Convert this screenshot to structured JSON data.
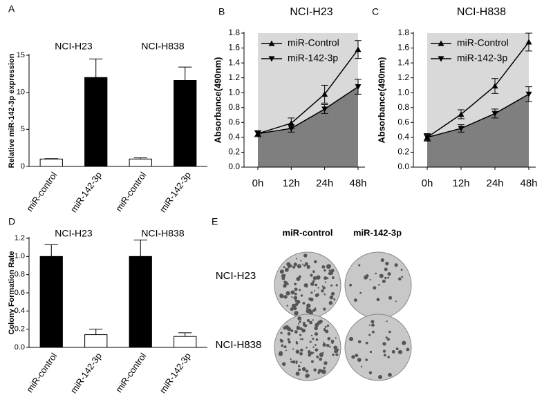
{
  "chart_data": [
    {
      "type": "bar",
      "panel": "A",
      "ylabel": "Relative miR-142-3p expression",
      "categories": [
        "miR-control",
        "miR-142-3p",
        "miR-control",
        "miR-142-3p"
      ],
      "groups": [
        "NCI-H23",
        "NCI-H838"
      ],
      "values": [
        1,
        12,
        1,
        11.6
      ],
      "errors": [
        0.05,
        2.5,
        0.15,
        1.8
      ],
      "colors": [
        "#ffffff",
        "#000000",
        "#ffffff",
        "#000000"
      ],
      "ylim": [
        0,
        15
      ],
      "yticks": [
        0,
        5,
        10,
        15
      ]
    },
    {
      "type": "line",
      "panel": "B",
      "title": "NCI-H23",
      "ylabel": "Absorbance(490nm)",
      "categories": [
        "0h",
        "12h",
        "24h",
        "48h"
      ],
      "series": [
        {
          "name": "miR-Control",
          "color": "#000000",
          "marker": "triangle-up",
          "values": [
            0.45,
            0.59,
            0.98,
            1.58
          ],
          "errors": [
            0.04,
            0.07,
            0.12,
            0.12
          ]
        },
        {
          "name": "miR-142-3p",
          "color": "#000000",
          "marker": "triangle-down",
          "values": [
            0.45,
            0.52,
            0.78,
            1.08
          ],
          "errors": [
            0.04,
            0.05,
            0.06,
            0.1
          ]
        }
      ],
      "ylim": [
        0,
        1.8
      ],
      "yticks": [
        {
          "value": 0,
          "label": "0.0"
        },
        0.2,
        0.4,
        0.6,
        0.8,
        {
          "value": 1,
          "label": "1.0"
        },
        1.2,
        1.4,
        1.6,
        1.8
      ],
      "legend": "upper left"
    },
    {
      "type": "line",
      "panel": "C",
      "title": "NCI-H838",
      "ylabel": "Absorbance(490nm)",
      "categories": [
        "0h",
        "12h",
        "24h",
        "48h"
      ],
      "series": [
        {
          "name": "miR-Control",
          "color": "#000000",
          "marker": "triangle-up",
          "values": [
            0.4,
            0.71,
            1.09,
            1.68
          ],
          "errors": [
            0.05,
            0.06,
            0.1,
            0.12
          ]
        },
        {
          "name": "miR-142-3p",
          "color": "#000000",
          "marker": "triangle-down",
          "values": [
            0.4,
            0.52,
            0.72,
            0.98
          ],
          "errors": [
            0.04,
            0.05,
            0.06,
            0.1
          ]
        }
      ],
      "ylim": [
        0,
        1.8
      ],
      "yticks": [
        {
          "value": 0,
          "label": "0.0"
        },
        0.2,
        0.4,
        0.6,
        0.8,
        {
          "value": 1,
          "label": "1.0"
        },
        1.2,
        1.4,
        1.6,
        1.8
      ],
      "legend": "upper left"
    },
    {
      "type": "bar",
      "panel": "D",
      "ylabel": "Colony Formation Rate",
      "categories": [
        "miR-control",
        "miR-142-3p",
        "miR-control",
        "miR-142-3p"
      ],
      "groups": [
        "NCI-H23",
        "NCI-H838"
      ],
      "values": [
        1.0,
        0.14,
        1.0,
        0.12
      ],
      "errors": [
        0.13,
        0.06,
        0.18,
        0.04
      ],
      "colors": [
        "#000000",
        "#ffffff",
        "#000000",
        "#ffffff"
      ],
      "ylim": [
        0,
        1.2
      ],
      "yticks": [
        {
          "value": 0,
          "label": "0.0"
        },
        0.2,
        0.4,
        0.6,
        0.8,
        {
          "value": 1,
          "label": "1.0"
        },
        1.2
      ]
    }
  ],
  "image_panel": {
    "panel": "E",
    "columns": [
      "miR-control",
      "miR-142-3p"
    ],
    "rows": [
      "NCI-H23",
      "NCI-H838"
    ]
  }
}
